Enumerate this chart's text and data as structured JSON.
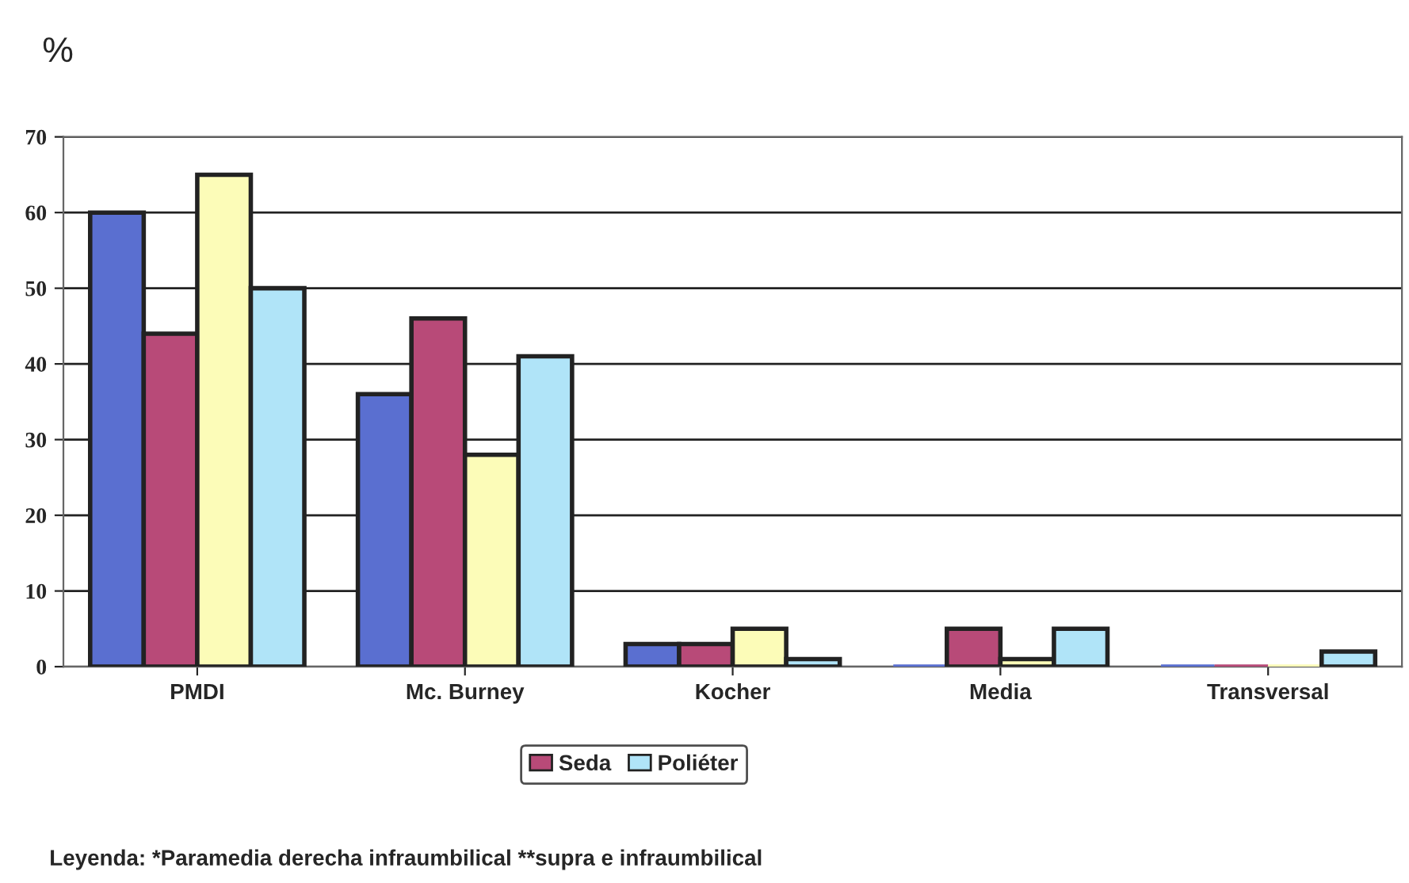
{
  "chart_data": {
    "type": "bar",
    "ylabel": "%",
    "categories": [
      "PMDI",
      "Mc. Burney",
      "Kocher",
      "Media",
      "Transversal"
    ],
    "series": [
      {
        "color": "#5a6fd0",
        "values": [
          60,
          36,
          3,
          0,
          0
        ]
      },
      {
        "name": "Seda",
        "color": "#b84a78",
        "values": [
          44,
          46,
          3,
          5,
          0
        ]
      },
      {
        "color": "#fcfcb8",
        "values": [
          65,
          28,
          5,
          1,
          0
        ]
      },
      {
        "name": "Poliéter",
        "color": "#b0e4f8",
        "values": [
          50,
          41,
          1,
          5,
          2
        ]
      }
    ],
    "ylim": [
      0,
      70
    ],
    "yticks": [
      0,
      10,
      20,
      30,
      40,
      50,
      60,
      70
    ],
    "grid": "y",
    "legend": "bottom",
    "annotations": [
      "Leyenda: *Paramedia derecha infraumbilical **supra e infraumbilical"
    ]
  }
}
